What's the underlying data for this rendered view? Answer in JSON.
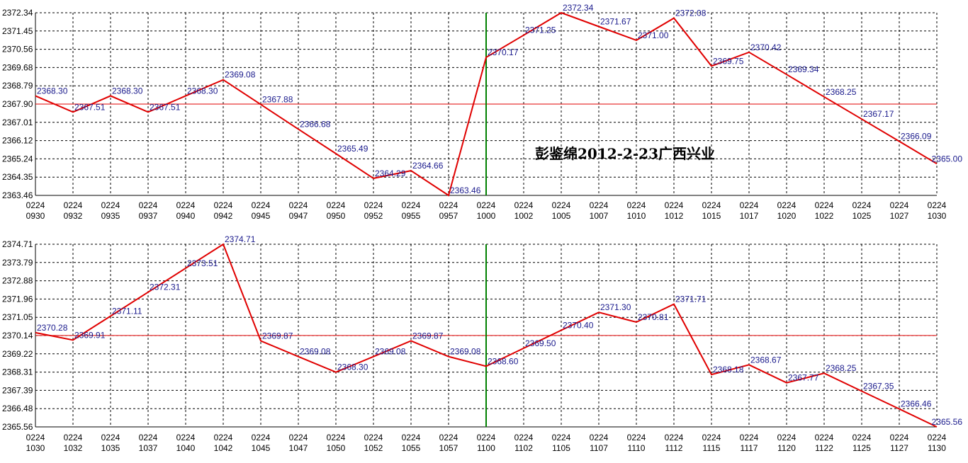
{
  "chart_data": [
    {
      "type": "line",
      "title": "",
      "annotation": "彭鉴绵2012-2-23广西兴业",
      "ylim": [
        2363.46,
        2372.34
      ],
      "y_ticks": [
        "2372.34",
        "2371.45",
        "2370.56",
        "2369.68",
        "2368.79",
        "2367.90",
        "2367.01",
        "2366.12",
        "2365.24",
        "2364.35",
        "2363.46"
      ],
      "x_ticks": [
        [
          "0224",
          "0930"
        ],
        [
          "0224",
          "0932"
        ],
        [
          "0224",
          "0935"
        ],
        [
          "0224",
          "0937"
        ],
        [
          "0224",
          "0940"
        ],
        [
          "0224",
          "0942"
        ],
        [
          "0224",
          "0945"
        ],
        [
          "0224",
          "0947"
        ],
        [
          "0224",
          "0950"
        ],
        [
          "0224",
          "0952"
        ],
        [
          "0224",
          "0955"
        ],
        [
          "0224",
          "0957"
        ],
        [
          "0224",
          "1000"
        ],
        [
          "0224",
          "1002"
        ],
        [
          "0224",
          "1005"
        ],
        [
          "0224",
          "1007"
        ],
        [
          "0224",
          "1010"
        ],
        [
          "0224",
          "1012"
        ],
        [
          "0224",
          "1015"
        ],
        [
          "0224",
          "1017"
        ],
        [
          "0224",
          "1020"
        ],
        [
          "0224",
          "1022"
        ],
        [
          "0224",
          "1025"
        ],
        [
          "0224",
          "1027"
        ],
        [
          "0224",
          "1030"
        ]
      ],
      "values": [
        2368.3,
        2367.51,
        2368.3,
        2367.51,
        2368.3,
        2369.08,
        2367.88,
        2366.68,
        2365.49,
        2364.29,
        2364.66,
        2363.46,
        2370.17,
        2371.25,
        2372.34,
        2371.67,
        2371.0,
        2372.08,
        2369.75,
        2370.42,
        2369.34,
        2368.25,
        2367.17,
        2366.09,
        2365.0
      ],
      "labels": [
        "2368.30",
        "2367.51",
        "2368.30",
        "2367.51",
        "2368.30",
        "2369.08",
        "2367.88",
        "2366.68",
        "2365.49",
        "2364.29",
        "2364.66",
        "2363.46",
        "2370.17",
        "2371.25",
        "2372.34",
        "2371.67",
        "2371.00",
        "2372.08",
        "2369.75",
        "2370.42",
        "2369.34",
        "2368.25",
        "2367.17",
        "2366.09",
        "2365.00"
      ],
      "reference_line": 2367.9,
      "marker_index": 12,
      "grid": true,
      "colors": {
        "line": "#e00000",
        "ref": "#e00000",
        "marker": "#008000",
        "grid": "#000000",
        "label": "#1a1a8c"
      }
    },
    {
      "type": "line",
      "title": "",
      "ylim": [
        2365.56,
        2374.71
      ],
      "y_ticks": [
        "2374.71",
        "2373.79",
        "2372.88",
        "2371.96",
        "2371.05",
        "2370.14",
        "2369.22",
        "2368.31",
        "2367.39",
        "2366.48",
        "2365.56"
      ],
      "x_ticks": [
        [
          "0224",
          "1030"
        ],
        [
          "0224",
          "1032"
        ],
        [
          "0224",
          "1035"
        ],
        [
          "0224",
          "1037"
        ],
        [
          "0224",
          "1040"
        ],
        [
          "0224",
          "1042"
        ],
        [
          "0224",
          "1045"
        ],
        [
          "0224",
          "1047"
        ],
        [
          "0224",
          "1050"
        ],
        [
          "0224",
          "1052"
        ],
        [
          "0224",
          "1055"
        ],
        [
          "0224",
          "1057"
        ],
        [
          "0224",
          "1100"
        ],
        [
          "0224",
          "1102"
        ],
        [
          "0224",
          "1105"
        ],
        [
          "0224",
          "1107"
        ],
        [
          "0224",
          "1110"
        ],
        [
          "0224",
          "1112"
        ],
        [
          "0224",
          "1115"
        ],
        [
          "0224",
          "1117"
        ],
        [
          "0224",
          "1120"
        ],
        [
          "0224",
          "1122"
        ],
        [
          "0224",
          "1125"
        ],
        [
          "0224",
          "1127"
        ],
        [
          "0224",
          "1130"
        ]
      ],
      "values": [
        2370.28,
        2369.91,
        2371.11,
        2372.31,
        2373.51,
        2374.71,
        2369.87,
        2369.08,
        2368.3,
        2369.08,
        2369.87,
        2369.08,
        2368.6,
        2369.5,
        2370.4,
        2371.3,
        2370.81,
        2371.71,
        2368.18,
        2368.67,
        2367.77,
        2368.25,
        2367.35,
        2366.46,
        2365.56
      ],
      "labels": [
        "2370.28",
        "2369.91",
        "2371.11",
        "2372.31",
        "2373.51",
        "2374.71",
        "2369.87",
        "2369.08",
        "2368.30",
        "2369.08",
        "2369.87",
        "2369.08",
        "2368.60",
        "2369.50",
        "2370.40",
        "2371.30",
        "2370.81",
        "2371.71",
        "2368.18",
        "2368.67",
        "2367.77",
        "2368.25",
        "2367.35",
        "2366.46",
        "2365.56"
      ],
      "reference_line": 2370.14,
      "marker_index": 12,
      "grid": true,
      "colors": {
        "line": "#e00000",
        "ref": "#e00000",
        "marker": "#008000",
        "grid": "#000000",
        "label": "#1a1a8c"
      }
    }
  ]
}
